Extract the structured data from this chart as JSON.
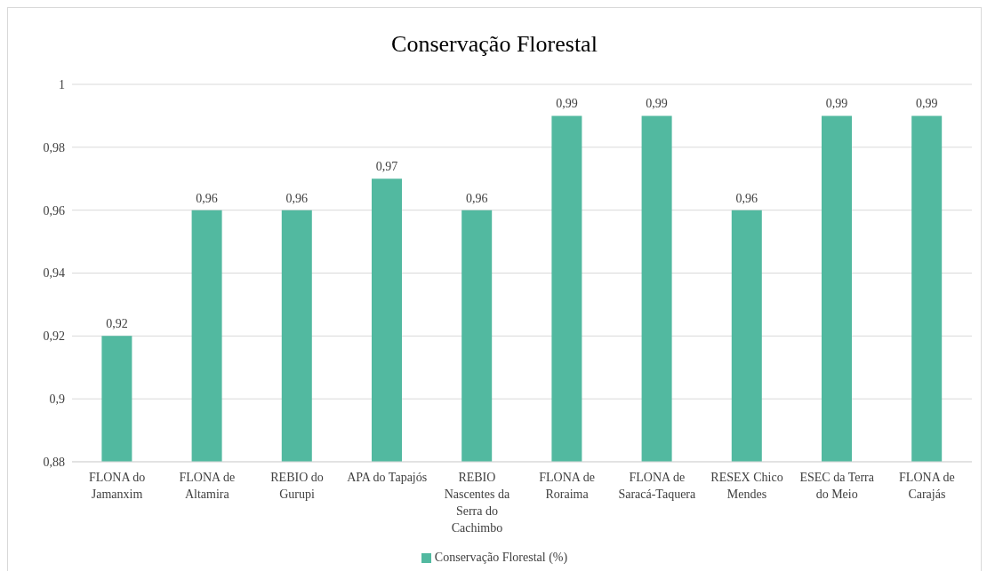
{
  "chart_data": {
    "type": "bar",
    "title": "Conservação Florestal",
    "categories": [
      "FLONA do Jamanxim",
      "FLONA de Altamira",
      "REBIO do Gurupi",
      "APA do Tapajós",
      "REBIO Nascentes da Serra do Cachimbo",
      "FLONA de Roraima",
      "FLONA de Saracá-Taquera",
      "RESEX Chico Mendes",
      "ESEC da Terra do Meio",
      "FLONA de Carajás"
    ],
    "series": [
      {
        "name": "Conservação Florestal (%)",
        "color": "#52b9a0",
        "values": [
          0.92,
          0.96,
          0.96,
          0.97,
          0.96,
          0.99,
          0.99,
          0.96,
          0.99,
          0.99
        ],
        "value_labels": [
          "0,92",
          "0,96",
          "0,96",
          "0,97",
          "0,96",
          "0,99",
          "0,99",
          "0,96",
          "0,99",
          "0,99"
        ]
      }
    ],
    "ylim": [
      0.88,
      1
    ],
    "yticks": [
      {
        "value": 0.88,
        "label": "0,88"
      },
      {
        "value": 0.9,
        "label": "0,9"
      },
      {
        "value": 0.92,
        "label": "0,92"
      },
      {
        "value": 0.94,
        "label": "0,94"
      },
      {
        "value": 0.96,
        "label": "0,96"
      },
      {
        "value": 0.98,
        "label": "0,98"
      },
      1
    ],
    "grid": "y",
    "legend": "bottom"
  }
}
